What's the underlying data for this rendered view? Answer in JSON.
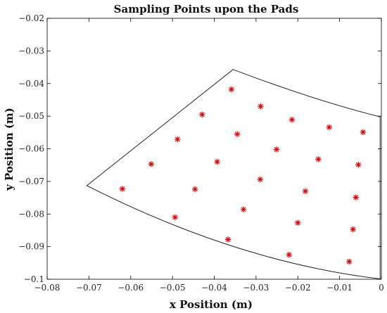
{
  "chart_data": {
    "type": "scatter",
    "title": "Sampling Points upon the Pads",
    "xlabel": "x Position (m)",
    "ylabel": "y Position (m)",
    "xlim": [
      -0.08,
      0
    ],
    "ylim": [
      -0.1,
      -0.02
    ],
    "x_ticks": [
      -0.08,
      -0.07,
      -0.06,
      -0.05,
      -0.04,
      -0.03,
      -0.02,
      -0.01,
      0
    ],
    "y_ticks": [
      -0.1,
      -0.09,
      -0.08,
      -0.07,
      -0.06,
      -0.05,
      -0.04,
      -0.03,
      -0.02
    ],
    "x_tick_labels": [
      "−0.08",
      "−0.07",
      "−0.06",
      "−0.05",
      "−0.04",
      "−0.03",
      "−0.02",
      "−0.01",
      "0"
    ],
    "y_tick_labels": [
      "−0.1",
      "−0.09",
      "−0.08",
      "−0.07",
      "−0.06",
      "−0.05",
      "−0.04",
      "−0.03",
      "−0.02"
    ],
    "grid": false,
    "pad_outline": {
      "apex": [
        -0.0705,
        -0.0713
      ],
      "top_corner": [
        -0.0355,
        -0.0357
      ],
      "right_top": [
        -0.0003,
        -0.0502
      ],
      "right_bottom": [
        -0.0003,
        -0.0999
      ],
      "outer_arc_mid": [
        -0.0154,
        -0.0454
      ],
      "inner_arc_mid": [
        -0.0345,
        -0.0947
      ]
    },
    "series": [
      {
        "marker": "asterisk",
        "color": "#e00000",
        "points": [
          [
            -0.0359,
            -0.0418
          ],
          [
            -0.0429,
            -0.0495
          ],
          [
            -0.0289,
            -0.047
          ],
          [
            -0.0214,
            -0.0511
          ],
          [
            -0.0125,
            -0.0534
          ],
          [
            -0.0044,
            -0.0549
          ],
          [
            -0.0488,
            -0.0571
          ],
          [
            -0.0345,
            -0.0555
          ],
          [
            -0.0251,
            -0.0602
          ],
          [
            -0.0151,
            -0.0632
          ],
          [
            -0.0055,
            -0.0649
          ],
          [
            -0.0551,
            -0.0647
          ],
          [
            -0.0393,
            -0.064
          ],
          [
            -0.029,
            -0.0694
          ],
          [
            -0.062,
            -0.0723
          ],
          [
            -0.0446,
            -0.0724
          ],
          [
            -0.0182,
            -0.073
          ],
          [
            -0.0061,
            -0.0749
          ],
          [
            -0.0494,
            -0.081
          ],
          [
            -0.033,
            -0.0786
          ],
          [
            -0.02,
            -0.0827
          ],
          [
            -0.0068,
            -0.0847
          ],
          [
            -0.0367,
            -0.0878
          ],
          [
            -0.0221,
            -0.0925
          ],
          [
            -0.0077,
            -0.0946
          ]
        ]
      }
    ]
  }
}
